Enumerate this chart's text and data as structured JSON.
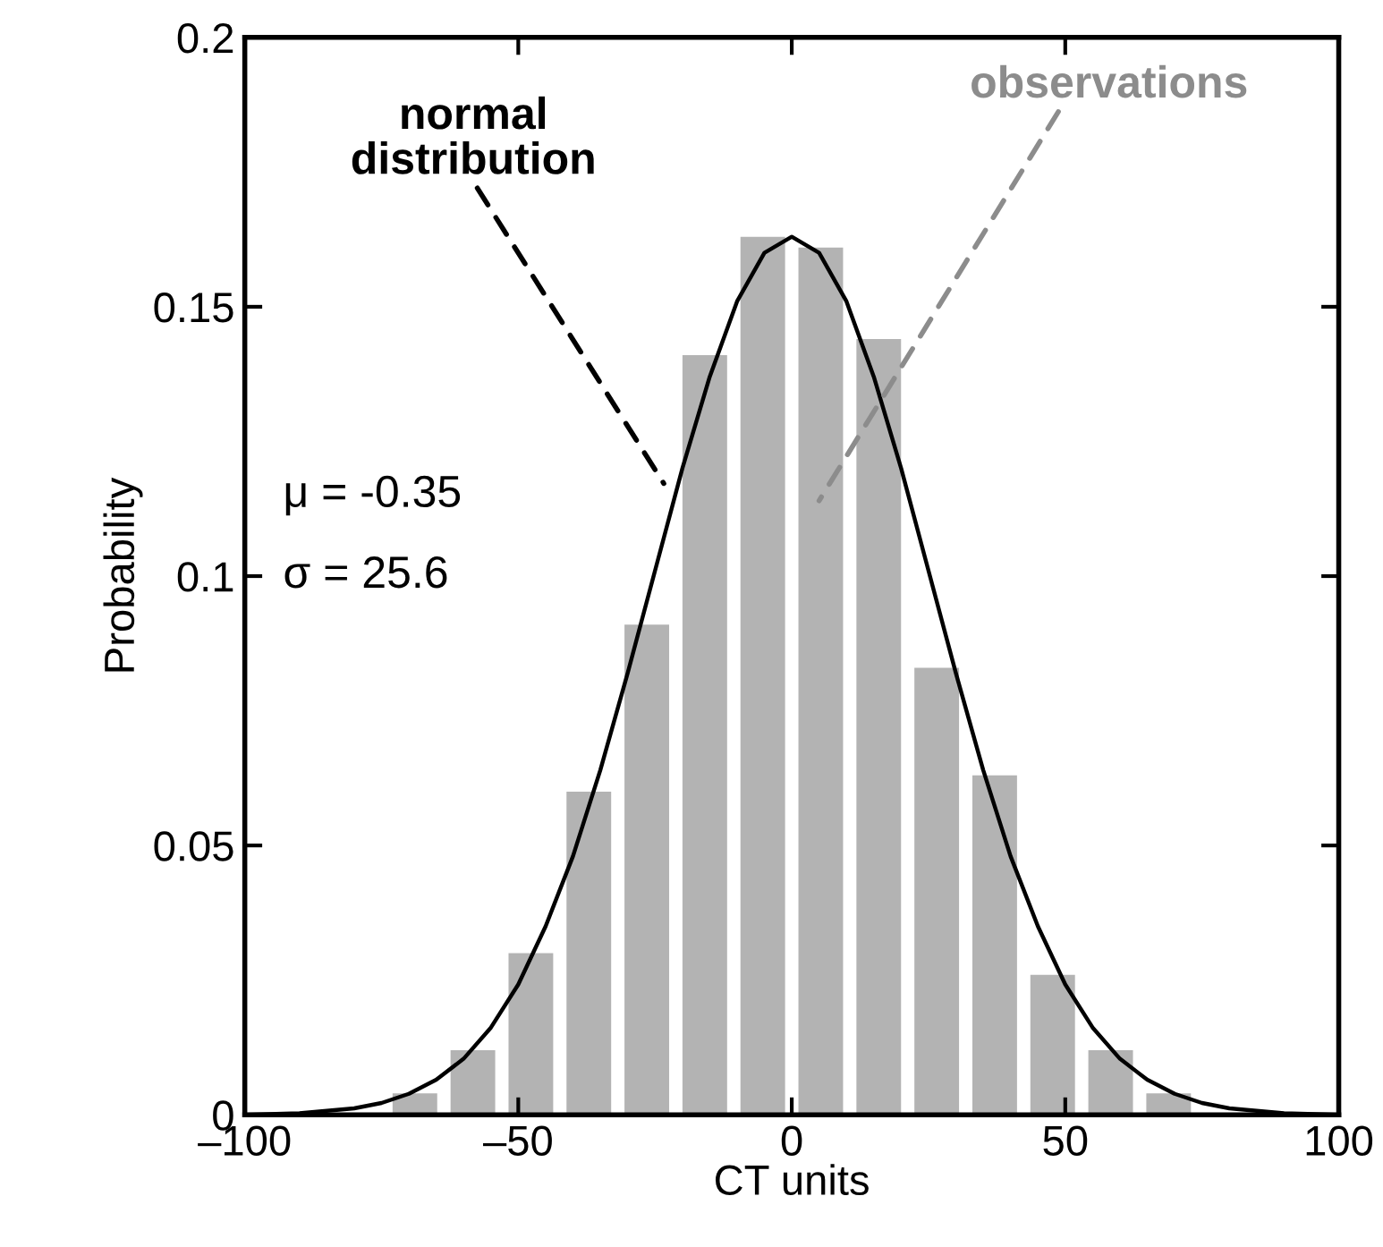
{
  "chart_data": {
    "type": "histogram",
    "xlabel": "CT units",
    "ylabel": "Probability",
    "bins": [
      -84.8,
      -74.2,
      -63.6,
      -53.0,
      -42.4,
      -31.8,
      -21.2,
      -10.6,
      0.0,
      10.6,
      21.2,
      31.8,
      42.4,
      53.0,
      63.6,
      74.2,
      84.8
    ],
    "values": [
      null,
      0.004,
      0.012,
      0.03,
      0.06,
      0.091,
      0.141,
      0.163,
      0.161,
      0.144,
      0.083,
      0.063,
      0.026,
      0.012,
      0.004,
      null
    ],
    "color": "#b3b3b3",
    "series": [
      {
        "type": "line",
        "color": "#000000",
        "x": [
          -100,
          -90,
          -80,
          -75,
          -70,
          -65,
          -60,
          -55,
          -50,
          -45,
          -40,
          -35,
          -30,
          -25,
          -20,
          -15,
          -10,
          -5,
          0,
          5,
          10,
          15,
          20,
          25,
          30,
          35,
          40,
          45,
          50,
          55,
          60,
          65,
          70,
          75,
          80,
          90,
          100
        ],
        "values": [
          0.0,
          0.0003,
          0.0012,
          0.0022,
          0.0039,
          0.0065,
          0.0104,
          0.0162,
          0.0242,
          0.035,
          0.048,
          0.064,
          0.082,
          0.101,
          0.12,
          0.137,
          0.151,
          0.16,
          0.163,
          0.16,
          0.151,
          0.137,
          0.12,
          0.101,
          0.082,
          0.064,
          0.048,
          0.035,
          0.0242,
          0.0162,
          0.0104,
          0.0065,
          0.0039,
          0.0022,
          0.0012,
          0.0003,
          0.0
        ]
      }
    ],
    "annotations": [
      "normal\ndistribution",
      "observations",
      "μ = -0.35",
      "σ = 25.6"
    ],
    "xlim": [
      -100,
      100
    ],
    "ylim": [
      0,
      0.2
    ],
    "xticks": [
      {
        "value": -100,
        "label": "–100"
      },
      {
        "value": -50,
        "label": "–50"
      },
      0,
      50,
      100
    ],
    "yticks": [
      0,
      0.05,
      0.1,
      0.15,
      0.2
    ],
    "grid": false,
    "legend": false
  }
}
